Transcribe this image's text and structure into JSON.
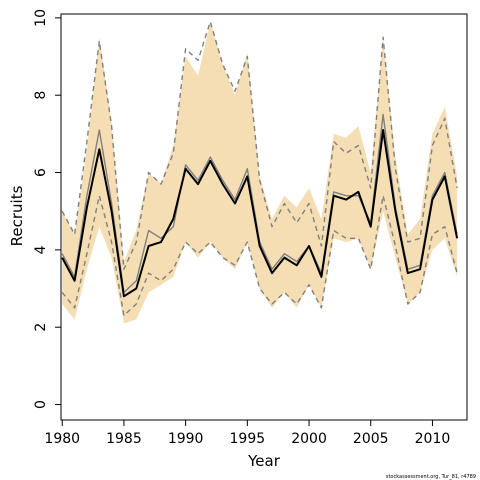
{
  "chart_data": {
    "type": "line",
    "title": "",
    "xlabel": "Year",
    "ylabel": "Recruits",
    "xlim": [
      1979.9,
      2012.8
    ],
    "ylim": [
      -0.4,
      10.1
    ],
    "x_ticks": [
      1980,
      1985,
      1990,
      1995,
      2000,
      2005,
      2010
    ],
    "y_ticks": [
      0,
      2,
      4,
      6,
      8,
      10
    ],
    "grid": false,
    "legend": "none",
    "x": [
      1980,
      1981,
      1982,
      1983,
      1984,
      1985,
      1986,
      1987,
      1988,
      1989,
      1990,
      1991,
      1992,
      1993,
      1994,
      1995,
      1996,
      1997,
      1998,
      1999,
      2000,
      2001,
      2002,
      2003,
      2004,
      2005,
      2006,
      2007,
      2008,
      2009,
      2010,
      2011,
      2012
    ],
    "band": {
      "color": "#f5deb3",
      "lower": [
        2.6,
        2.2,
        3.5,
        4.6,
        3.8,
        2.1,
        2.2,
        2.9,
        3.1,
        3.3,
        4.2,
        3.8,
        4.2,
        3.8,
        3.5,
        4.2,
        3.0,
        2.5,
        2.9,
        2.5,
        3.1,
        2.5,
        4.3,
        4.2,
        4.3,
        3.5,
        5.0,
        3.8,
        2.6,
        2.9,
        4.0,
        4.3,
        3.3
      ],
      "upper": [
        5.0,
        4.4,
        6.6,
        9.5,
        7.3,
        3.7,
        4.5,
        6.0,
        5.7,
        6.7,
        9.0,
        8.5,
        9.9,
        8.8,
        8.0,
        9.1,
        5.9,
        4.8,
        5.4,
        5.1,
        5.6,
        4.8,
        7.0,
        6.9,
        7.2,
        6.0,
        9.5,
        6.4,
        4.4,
        4.8,
        7.0,
        7.7,
        5.9
      ]
    },
    "series": [
      {
        "role": "estimate",
        "color": "#000000",
        "values": [
          3.8,
          3.2,
          5.1,
          6.6,
          5.0,
          2.8,
          3.0,
          4.1,
          4.2,
          4.8,
          6.1,
          5.7,
          6.3,
          5.7,
          5.2,
          5.9,
          4.1,
          3.4,
          3.8,
          3.6,
          4.1,
          3.3,
          5.4,
          5.3,
          5.5,
          4.6,
          7.1,
          5.0,
          3.4,
          3.5,
          5.3,
          5.9,
          4.3
        ]
      },
      {
        "role": "alt-median",
        "color": "#808080",
        "values": [
          3.9,
          3.3,
          5.4,
          7.1,
          5.2,
          2.9,
          3.2,
          4.5,
          4.3,
          4.6,
          6.2,
          5.8,
          6.4,
          5.8,
          5.3,
          6.1,
          4.2,
          3.5,
          3.9,
          3.7,
          4.1,
          3.4,
          5.5,
          5.4,
          5.4,
          4.7,
          7.5,
          5.1,
          3.5,
          3.6,
          5.4,
          6.0,
          4.4
        ]
      },
      {
        "role": "alt-upper",
        "color": "#808080",
        "dashed": true,
        "values": [
          5.0,
          4.4,
          6.8,
          9.4,
          7.2,
          3.5,
          4.2,
          6.0,
          5.7,
          6.5,
          9.2,
          8.9,
          9.9,
          8.8,
          8.1,
          9.0,
          5.8,
          4.6,
          5.2,
          4.7,
          5.2,
          4.1,
          6.8,
          6.5,
          6.7,
          5.6,
          9.5,
          6.1,
          4.2,
          4.3,
          6.7,
          7.4,
          5.6
        ]
      },
      {
        "role": "alt-lower",
        "color": "#808080",
        "dashed": true,
        "values": [
          2.9,
          2.5,
          3.9,
          5.4,
          4.2,
          2.3,
          2.6,
          3.4,
          3.2,
          3.5,
          4.2,
          3.9,
          4.2,
          3.8,
          3.6,
          4.2,
          3.0,
          2.6,
          2.9,
          2.6,
          3.1,
          2.5,
          4.5,
          4.3,
          4.3,
          3.5,
          5.4,
          4.1,
          2.6,
          2.9,
          4.4,
          4.6,
          3.4
        ]
      }
    ]
  },
  "footer": "stockassessment.org, Tur_81, r4789"
}
